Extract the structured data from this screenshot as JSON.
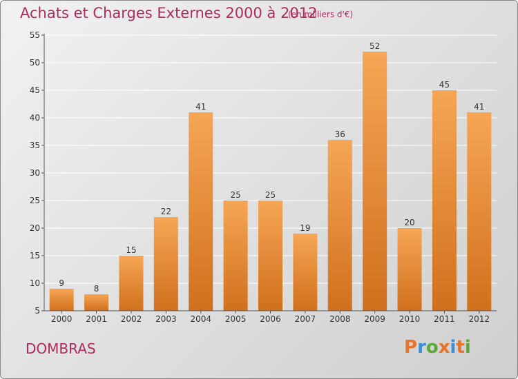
{
  "header": {
    "title": "Achats et Charges Externes 2000 à 2012",
    "unit": "(en milliers d'€)"
  },
  "footer": {
    "commune": "DOMBRAS",
    "logo_text": "Proxiti",
    "logo_colors": [
      "#e8732a",
      "#3a8fd6",
      "#5aa83a",
      "#e8732a",
      "#3a8fd6",
      "#e8732a",
      "#5aa83a"
    ]
  },
  "colors": {
    "accent": "#b12a5e",
    "bar_top": "#f6a656",
    "bar_bottom": "#d0701c",
    "grid": "#ffffff",
    "axis": "#555555",
    "text": "#333333"
  },
  "chart_data": {
    "type": "bar",
    "categories": [
      "2000",
      "2001",
      "2002",
      "2003",
      "2004",
      "2005",
      "2006",
      "2007",
      "2008",
      "2009",
      "2010",
      "2011",
      "2012"
    ],
    "values": [
      9,
      8,
      15,
      22,
      41,
      25,
      25,
      19,
      36,
      52,
      20,
      45,
      41
    ],
    "title": "Achats et Charges Externes 2000 à 2012",
    "xlabel": "",
    "ylabel": "",
    "ylim": [
      5,
      55
    ],
    "yticks": [
      5,
      10,
      15,
      20,
      25,
      30,
      35,
      40,
      45,
      50,
      55
    ],
    "grid": true,
    "data_labels": true
  }
}
